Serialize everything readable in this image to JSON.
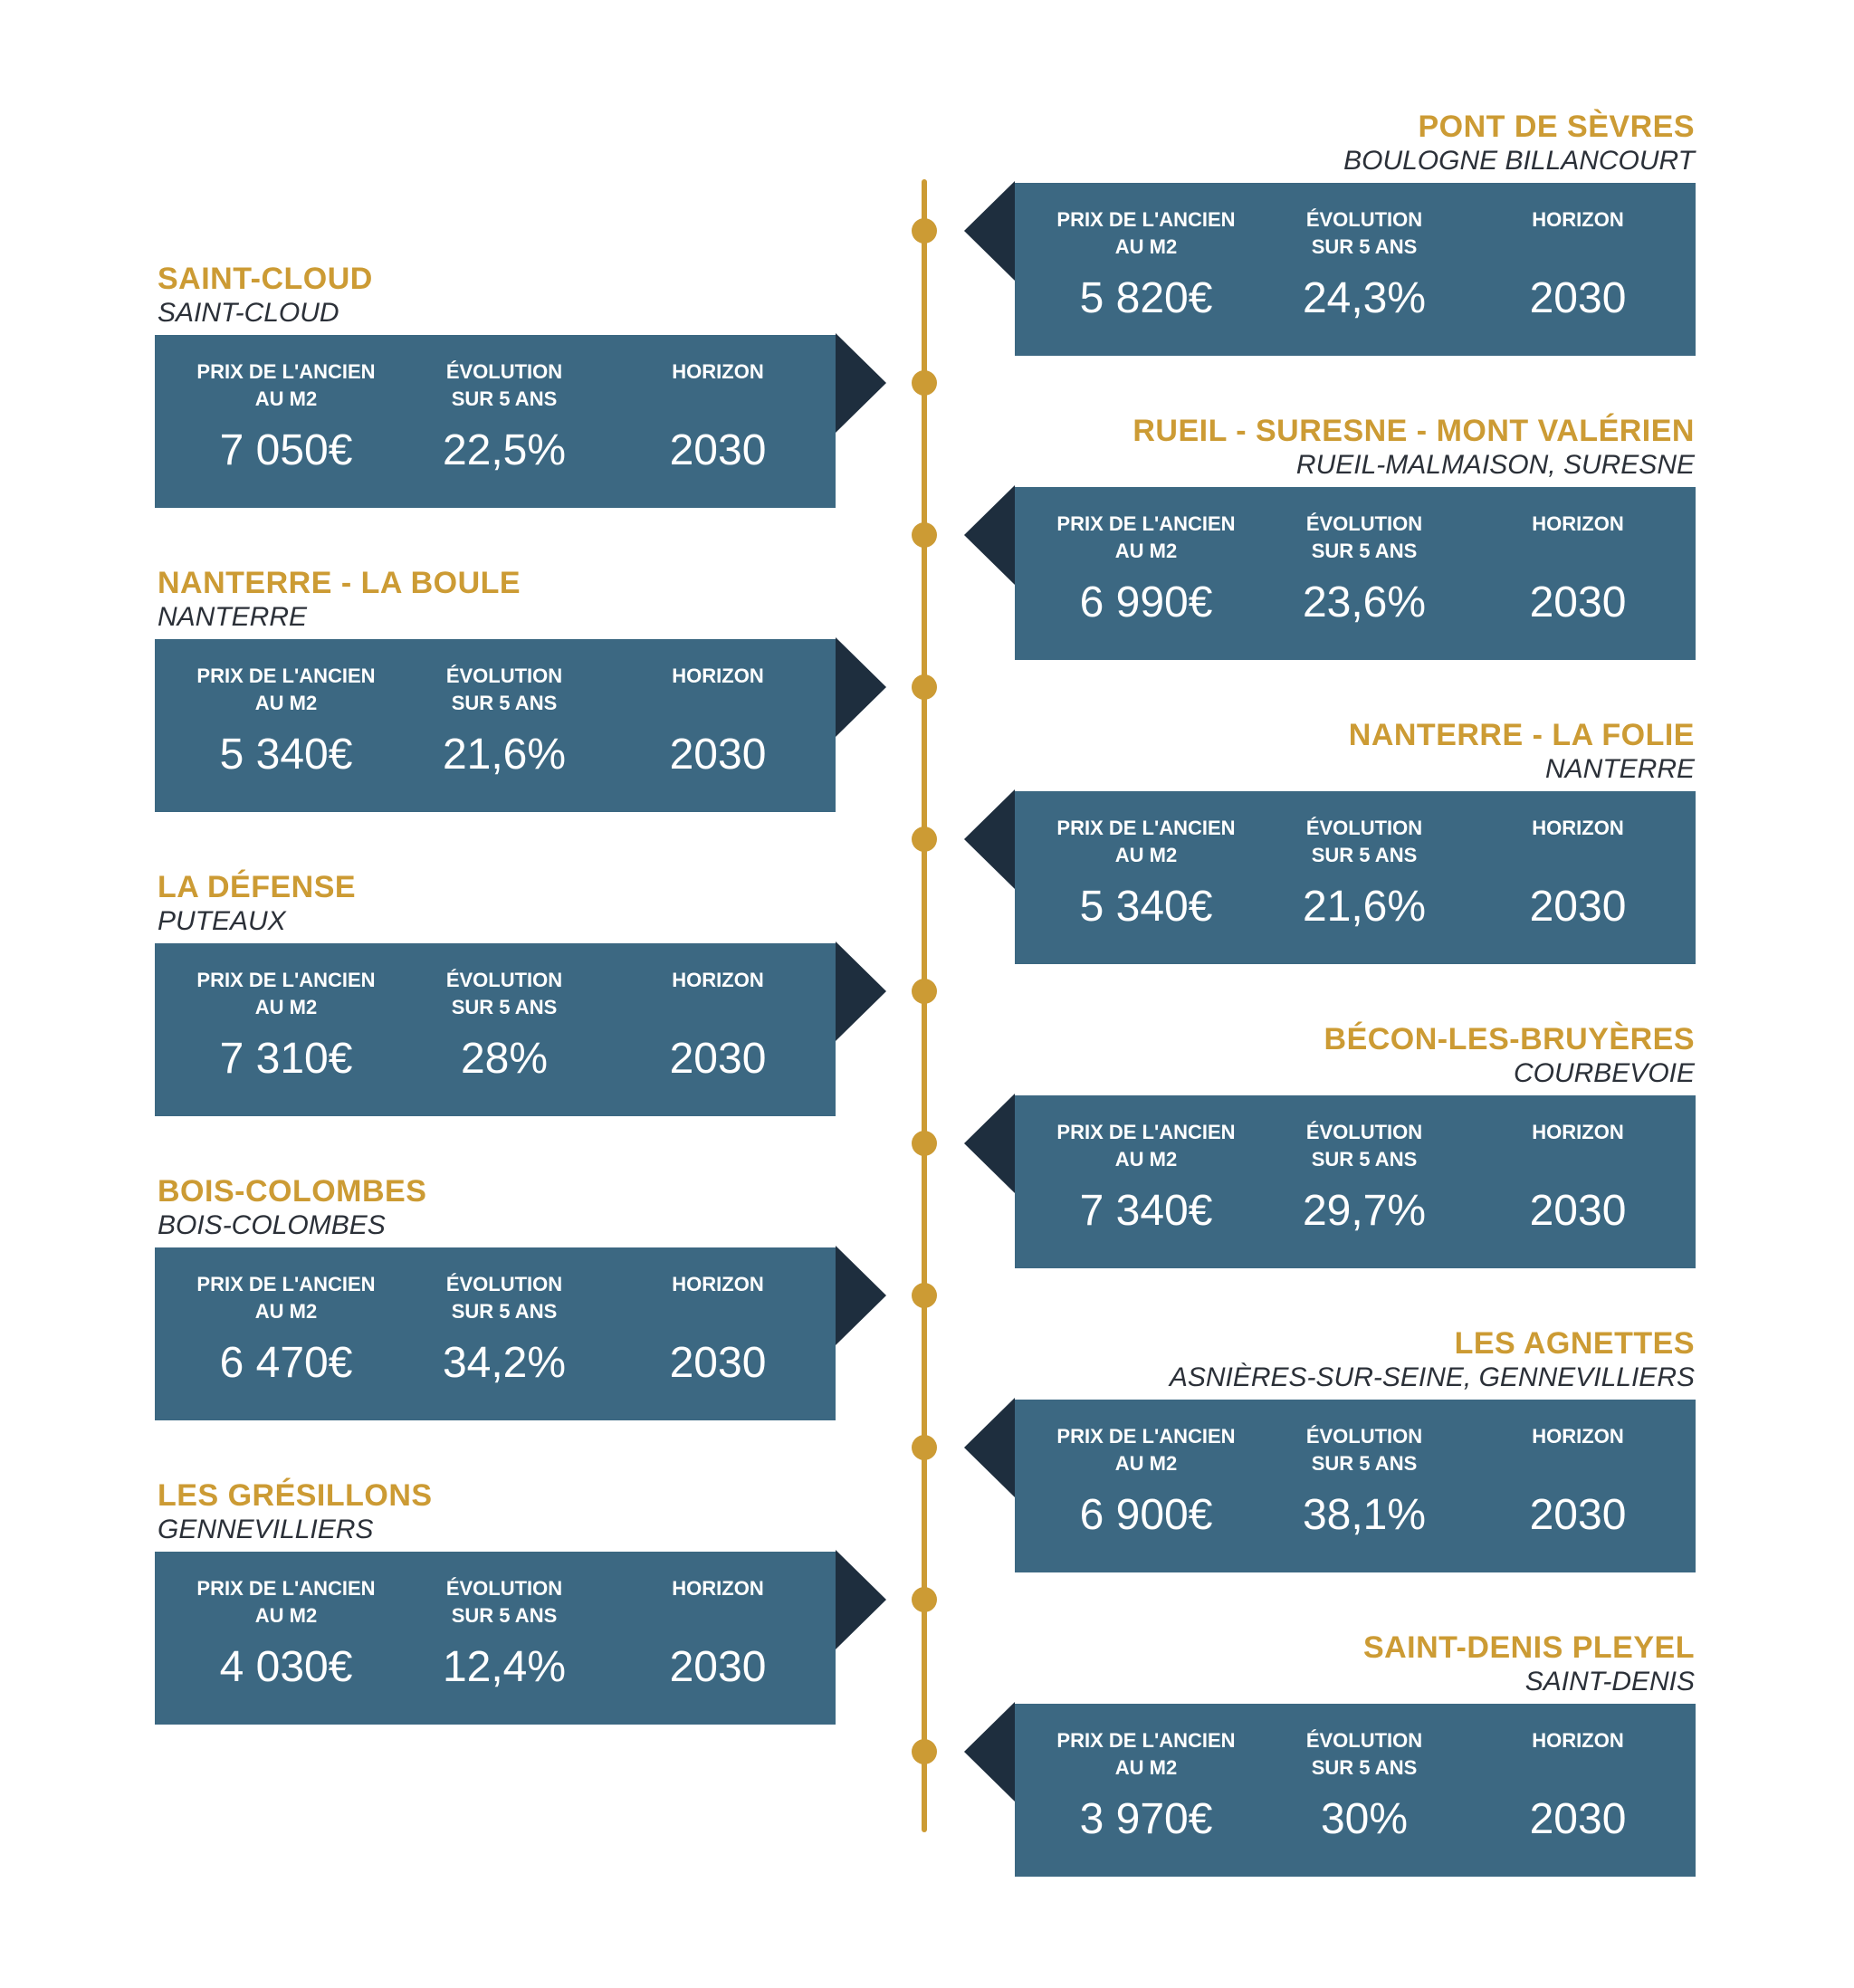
{
  "colors": {
    "accent": "#cc9b34",
    "card": "#3c6882",
    "arrow": "#1e2e3e",
    "subtitle_text": "#2b3038"
  },
  "labels": {
    "price": "PRIX DE L'ANCIEN\nAU M2",
    "evolution": "ÉVOLUTION\nSUR 5 ANS",
    "horizon": "HORIZON"
  },
  "stations": [
    {
      "side": "right",
      "title": "PONT DE SÈVRES",
      "subtitle": "BOULOGNE BILLANCOURT",
      "price": "5 820€",
      "evolution": "24,3%",
      "horizon": "2030"
    },
    {
      "side": "left",
      "title": "SAINT-CLOUD",
      "subtitle": "SAINT-CLOUD",
      "price": "7 050€",
      "evolution": "22,5%",
      "horizon": "2030"
    },
    {
      "side": "right",
      "title": "RUEIL - SURESNE - MONT VALÉRIEN",
      "subtitle": "RUEIL-MALMAISON, SURESNE",
      "price": "6 990€",
      "evolution": "23,6%",
      "horizon": "2030"
    },
    {
      "side": "left",
      "title": "NANTERRE - LA BOULE",
      "subtitle": "NANTERRE",
      "price": "5 340€",
      "evolution": "21,6%",
      "horizon": "2030"
    },
    {
      "side": "right",
      "title": "NANTERRE - LA FOLIE",
      "subtitle": "NANTERRE",
      "price": "5 340€",
      "evolution": "21,6%",
      "horizon": "2030"
    },
    {
      "side": "left",
      "title": "LA DÉFENSE",
      "subtitle": "PUTEAUX",
      "price": "7 310€",
      "evolution": "28%",
      "horizon": "2030"
    },
    {
      "side": "right",
      "title": "BÉCON-LES-BRUYÈRES",
      "subtitle": "COURBEVOIE",
      "price": "7 340€",
      "evolution": "29,7%",
      "horizon": "2030"
    },
    {
      "side": "left",
      "title": "BOIS-COLOMBES",
      "subtitle": "BOIS-COLOMBES",
      "price": "6 470€",
      "evolution": "34,2%",
      "horizon": "2030"
    },
    {
      "side": "right",
      "title": "LES AGNETTES",
      "subtitle": "ASNIÈRES-SUR-SEINE, GENNEVILLIERS",
      "price": "6 900€",
      "evolution": "38,1%",
      "horizon": "2030"
    },
    {
      "side": "left",
      "title": "LES GRÉSILLONS",
      "subtitle": "GENNEVILLIERS",
      "price": "4 030€",
      "evolution": "12,4%",
      "horizon": "2030"
    },
    {
      "side": "right",
      "title": "SAINT-DENIS PLEYEL",
      "subtitle": "SAINT-DENIS",
      "price": "3 970€",
      "evolution": "30%",
      "horizon": "2030"
    }
  ]
}
